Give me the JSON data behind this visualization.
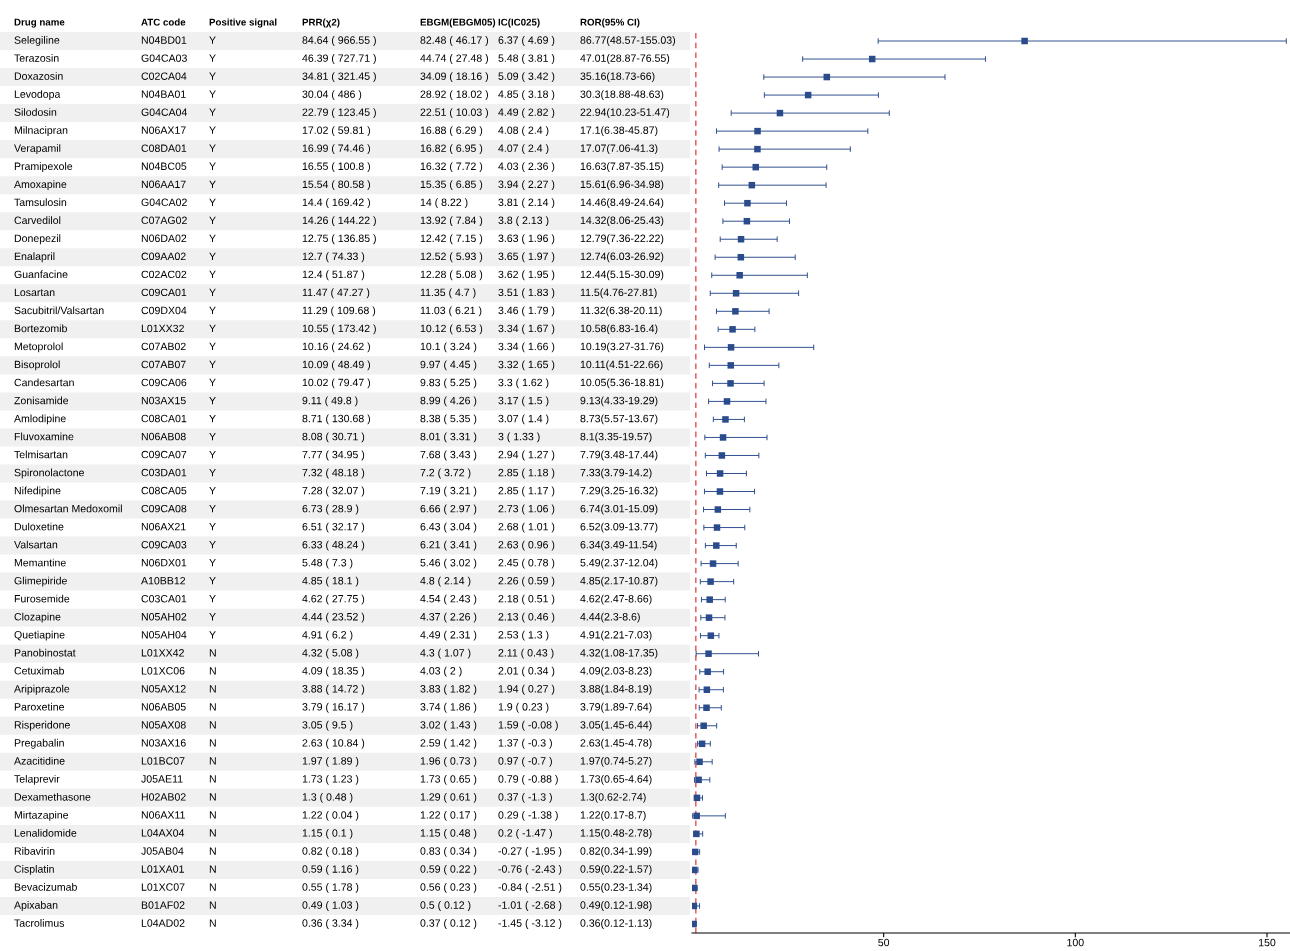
{
  "chart_data": [
    {
      "type": "other",
      "categories": [
        "Drug name",
        "ATC code",
        "Positive signal",
        "PRR(χ2)",
        "EBGM(EBGM05)",
        "IC(IC025)",
        "ROR(95% CI)"
      ],
      "cell_labels": [
        [
          "Selegiline",
          "N04BD01",
          "Y",
          "84.64 ( 966.55 )",
          "82.48 ( 46.17 )",
          "6.37 ( 4.69 )",
          "86.77(48.57-155.03)"
        ],
        [
          "Terazosin",
          "G04CA03",
          "Y",
          "46.39 ( 727.71 )",
          "44.74 ( 27.48 )",
          "5.48 ( 3.81 )",
          "47.01(28.87-76.55)"
        ],
        [
          "Doxazosin",
          "C02CA04",
          "Y",
          "34.81 ( 321.45 )",
          "34.09 ( 18.16 )",
          "5.09 ( 3.42 )",
          "35.16(18.73-66)"
        ],
        [
          "Levodopa",
          "N04BA01",
          "Y",
          "30.04 ( 486 )",
          "28.92 ( 18.02 )",
          "4.85 ( 3.18 )",
          "30.3(18.88-48.63)"
        ],
        [
          "Silodosin",
          "G04CA04",
          "Y",
          "22.79 ( 123.45 )",
          "22.51 ( 10.03 )",
          "4.49 ( 2.82 )",
          "22.94(10.23-51.47)"
        ],
        [
          "Milnacipran",
          "N06AX17",
          "Y",
          "17.02 ( 59.81 )",
          "16.88 ( 6.29 )",
          "4.08 ( 2.4 )",
          "17.1(6.38-45.87)"
        ],
        [
          "Verapamil",
          "C08DA01",
          "Y",
          "16.99 ( 74.46 )",
          "16.82 ( 6.95 )",
          "4.07 ( 2.4 )",
          "17.07(7.06-41.3)"
        ],
        [
          "Pramipexole",
          "N04BC05",
          "Y",
          "16.55 ( 100.8 )",
          "16.32 ( 7.72 )",
          "4.03 ( 2.36 )",
          "16.63(7.87-35.15)"
        ],
        [
          "Amoxapine",
          "N06AA17",
          "Y",
          "15.54 ( 80.58 )",
          "15.35 ( 6.85 )",
          "3.94 ( 2.27 )",
          "15.61(6.96-34.98)"
        ],
        [
          "Tamsulosin",
          "G04CA02",
          "Y",
          "14.4 ( 169.42 )",
          "14 ( 8.22 )",
          "3.81 ( 2.14 )",
          "14.46(8.49-24.64)"
        ],
        [
          "Carvedilol",
          "C07AG02",
          "Y",
          "14.26 ( 144.22 )",
          "13.92 ( 7.84 )",
          "3.8 ( 2.13 )",
          "14.32(8.06-25.43)"
        ],
        [
          "Donepezil",
          "N06DA02",
          "Y",
          "12.75 ( 136.85 )",
          "12.42 ( 7.15 )",
          "3.63 ( 1.96 )",
          "12.79(7.36-22.22)"
        ],
        [
          "Enalapril",
          "C09AA02",
          "Y",
          "12.7 ( 74.33 )",
          "12.52 ( 5.93 )",
          "3.65 ( 1.97 )",
          "12.74(6.03-26.92)"
        ],
        [
          "Guanfacine",
          "C02AC02",
          "Y",
          "12.4 ( 51.87 )",
          "12.28 ( 5.08 )",
          "3.62 ( 1.95 )",
          "12.44(5.15-30.09)"
        ],
        [
          "Losartan",
          "C09CA01",
          "Y",
          "11.47 ( 47.27 )",
          "11.35 ( 4.7 )",
          "3.51 ( 1.83 )",
          "11.5(4.76-27.81)"
        ],
        [
          "Sacubitril/Valsartan",
          "C09DX04",
          "Y",
          "11.29 ( 109.68 )",
          "11.03 ( 6.21 )",
          "3.46 ( 1.79 )",
          "11.32(6.38-20.11)"
        ],
        [
          "Bortezomib",
          "L01XX32",
          "Y",
          "10.55 ( 173.42 )",
          "10.12 ( 6.53 )",
          "3.34 ( 1.67 )",
          "10.58(6.83-16.4)"
        ],
        [
          "Metoprolol",
          "C07AB02",
          "Y",
          "10.16 ( 24.62 )",
          "10.1 ( 3.24 )",
          "3.34 ( 1.66 )",
          "10.19(3.27-31.76)"
        ],
        [
          "Bisoprolol",
          "C07AB07",
          "Y",
          "10.09 ( 48.49 )",
          "9.97 ( 4.45 )",
          "3.32 ( 1.65 )",
          "10.11(4.51-22.66)"
        ],
        [
          "Candesartan",
          "C09CA06",
          "Y",
          "10.02 ( 79.47 )",
          "9.83 ( 5.25 )",
          "3.3 ( 1.62 )",
          "10.05(5.36-18.81)"
        ],
        [
          "Zonisamide",
          "N03AX15",
          "Y",
          "9.11 ( 49.8 )",
          "8.99 ( 4.26 )",
          "3.17 ( 1.5 )",
          "9.13(4.33-19.29)"
        ],
        [
          "Amlodipine",
          "C08CA01",
          "Y",
          "8.71 ( 130.68 )",
          "8.38 ( 5.35 )",
          "3.07 ( 1.4 )",
          "8.73(5.57-13.67)"
        ],
        [
          "Fluvoxamine",
          "N06AB08",
          "Y",
          "8.08 ( 30.71 )",
          "8.01 ( 3.31 )",
          "3 ( 1.33 )",
          "8.1(3.35-19.57)"
        ],
        [
          "Telmisartan",
          "C09CA07",
          "Y",
          "7.77 ( 34.95 )",
          "7.68 ( 3.43 )",
          "2.94 ( 1.27 )",
          "7.79(3.48-17.44)"
        ],
        [
          "Spironolactone",
          "C03DA01",
          "Y",
          "7.32 ( 48.18 )",
          "7.2 ( 3.72 )",
          "2.85 ( 1.18 )",
          "7.33(3.79-14.2)"
        ],
        [
          "Nifedipine",
          "C08CA05",
          "Y",
          "7.28 ( 32.07 )",
          "7.19 ( 3.21 )",
          "2.85 ( 1.17 )",
          "7.29(3.25-16.32)"
        ],
        [
          "Olmesartan Medoxomil",
          "C09CA08",
          "Y",
          "6.73 ( 28.9 )",
          "6.66 ( 2.97 )",
          "2.73 ( 1.06 )",
          "6.74(3.01-15.09)"
        ],
        [
          "Duloxetine",
          "N06AX21",
          "Y",
          "6.51 ( 32.17 )",
          "6.43 ( 3.04 )",
          "2.68 ( 1.01 )",
          "6.52(3.09-13.77)"
        ],
        [
          "Valsartan",
          "C09CA03",
          "Y",
          "6.33 ( 48.24 )",
          "6.21 ( 3.41 )",
          "2.63 ( 0.96 )",
          "6.34(3.49-11.54)"
        ],
        [
          "Memantine",
          "N06DX01",
          "Y",
          "5.48 ( 7.3 )",
          "5.46 ( 3.02 )",
          "2.45 ( 0.78 )",
          "5.49(2.37-12.04)"
        ],
        [
          "Glimepiride",
          "A10BB12",
          "Y",
          "4.85 ( 18.1 )",
          "4.8 ( 2.14 )",
          "2.26 ( 0.59 )",
          "4.85(2.17-10.87)"
        ],
        [
          "Furosemide",
          "C03CA01",
          "Y",
          "4.62 ( 27.75 )",
          "4.54 ( 2.43 )",
          "2.18 ( 0.51 )",
          "4.62(2.47-8.66)"
        ],
        [
          "Clozapine",
          "N05AH02",
          "Y",
          "4.44 ( 23.52 )",
          "4.37 ( 2.26 )",
          "2.13 ( 0.46 )",
          "4.44(2.3-8.6)"
        ],
        [
          "Quetiapine",
          "N05AH04",
          "Y",
          "4.91 ( 6.2 )",
          "4.49 ( 2.31 )",
          "2.53 ( 1.3 )",
          "4.91(2.21-7.03)"
        ],
        [
          "Panobinostat",
          "L01XX42",
          "N",
          "4.32 ( 5.08 )",
          "4.3 ( 1.07 )",
          "2.11 ( 0.43 )",
          "4.32(1.08-17.35)"
        ],
        [
          "Cetuximab",
          "L01XC06",
          "N",
          "4.09 ( 18.35 )",
          "4.03 ( 2 )",
          "2.01 ( 0.34 )",
          "4.09(2.03-8.23)"
        ],
        [
          "Aripiprazole",
          "N05AX12",
          "N",
          "3.88 ( 14.72 )",
          "3.83 ( 1.82 )",
          "1.94 ( 0.27 )",
          "3.88(1.84-8.19)"
        ],
        [
          "Paroxetine",
          "N06AB05",
          "N",
          "3.79 ( 16.17 )",
          "3.74 ( 1.86 )",
          "1.9 ( 0.23 )",
          "3.79(1.89-7.64)"
        ],
        [
          "Risperidone",
          "N05AX08",
          "N",
          "3.05 ( 9.5 )",
          "3.02 ( 1.43 )",
          "1.59 ( -0.08 )",
          "3.05(1.45-6.44)"
        ],
        [
          "Pregabalin",
          "N03AX16",
          "N",
          "2.63 ( 10.84 )",
          "2.59 ( 1.42 )",
          "1.37 ( -0.3 )",
          "2.63(1.45-4.78)"
        ],
        [
          "Azacitidine",
          "L01BC07",
          "N",
          "1.97 ( 1.89 )",
          "1.96 ( 0.73 )",
          "0.97 ( -0.7 )",
          "1.97(0.74-5.27)"
        ],
        [
          "Telaprevir",
          "J05AE11",
          "N",
          "1.73 ( 1.23 )",
          "1.73 ( 0.65 )",
          "0.79 ( -0.88 )",
          "1.73(0.65-4.64)"
        ],
        [
          "Dexamethasone",
          "H02AB02",
          "N",
          "1.3 ( 0.48 )",
          "1.29 ( 0.61 )",
          "0.37 ( -1.3 )",
          "1.3(0.62-2.74)"
        ],
        [
          "Mirtazapine",
          "N06AX11",
          "N",
          "1.22 ( 0.04 )",
          "1.22 ( 0.17 )",
          "0.29 ( -1.38 )",
          "1.22(0.17-8.7)"
        ],
        [
          "Lenalidomide",
          "L04AX04",
          "N",
          "1.15 ( 0.1 )",
          "1.15 ( 0.48 )",
          "0.2 ( -1.47 )",
          "1.15(0.48-2.78)"
        ],
        [
          "Ribavirin",
          "J05AB04",
          "N",
          "0.82 ( 0.18 )",
          "0.83 ( 0.34 )",
          "-0.27 ( -1.95 )",
          "0.82(0.34-1.99)"
        ],
        [
          "Cisplatin",
          "L01XA01",
          "N",
          "0.59 ( 1.16 )",
          "0.59 ( 0.22 )",
          "-0.76 ( -2.43 )",
          "0.59(0.22-1.57)"
        ],
        [
          "Bevacizumab",
          "L01XC07",
          "N",
          "0.55 ( 1.78 )",
          "0.56 ( 0.23 )",
          "-0.84 ( -2.51 )",
          "0.55(0.23-1.34)"
        ],
        [
          "Apixaban",
          "B01AF02",
          "N",
          "0.49 ( 1.03 )",
          "0.5 ( 0.12 )",
          "-1.01 ( -2.68 )",
          "0.49(0.12-1.98)"
        ],
        [
          "Tacrolimus",
          "L04AD02",
          "N",
          "0.36 ( 3.34 )",
          "0.37 ( 0.12 )",
          "-1.45 ( -3.12 )",
          "0.36(0.12-1.13)"
        ]
      ]
    },
    {
      "type": "scatter",
      "orientation": "horizontal",
      "tick_labels": "x",
      "marker": "square",
      "color": "#2b4c8c",
      "categories": [
        null,
        null,
        null,
        null,
        null,
        null,
        null,
        null,
        null,
        null,
        null,
        null,
        null,
        null,
        null,
        null,
        null,
        null,
        null,
        null,
        null,
        null,
        null,
        null,
        null,
        null,
        null,
        null,
        null,
        null,
        null,
        null,
        null,
        null,
        null,
        null,
        null,
        null,
        null,
        null,
        null,
        null,
        null,
        null,
        null,
        null,
        null,
        null,
        null,
        null
      ],
      "values": [
        86.77,
        47.01,
        35.16,
        30.3,
        22.94,
        17.1,
        17.07,
        16.63,
        15.61,
        14.46,
        14.32,
        12.79,
        12.74,
        12.44,
        11.5,
        11.32,
        10.58,
        10.19,
        10.11,
        10.05,
        9.13,
        8.73,
        8.1,
        7.79,
        7.33,
        7.29,
        6.74,
        6.52,
        6.34,
        5.49,
        4.85,
        4.62,
        4.44,
        4.91,
        4.32,
        4.09,
        3.88,
        3.79,
        3.05,
        2.63,
        1.97,
        1.73,
        1.3,
        1.22,
        1.15,
        0.82,
        0.59,
        0.55,
        0.49,
        0.36
      ],
      "errors": [
        [
          48.57,
          155.03
        ],
        [
          28.87,
          76.55
        ],
        [
          18.73,
          66
        ],
        [
          18.88,
          48.63
        ],
        [
          10.23,
          51.47
        ],
        [
          6.38,
          45.87
        ],
        [
          7.06,
          41.3
        ],
        [
          7.87,
          35.15
        ],
        [
          6.96,
          34.98
        ],
        [
          8.49,
          24.64
        ],
        [
          8.06,
          25.43
        ],
        [
          7.36,
          22.22
        ],
        [
          6.03,
          26.92
        ],
        [
          5.15,
          30.09
        ],
        [
          4.76,
          27.81
        ],
        [
          6.38,
          20.11
        ],
        [
          6.83,
          16.4
        ],
        [
          3.27,
          31.76
        ],
        [
          4.51,
          22.66
        ],
        [
          5.36,
          18.81
        ],
        [
          4.33,
          19.29
        ],
        [
          5.57,
          13.67
        ],
        [
          3.35,
          19.57
        ],
        [
          3.48,
          17.44
        ],
        [
          3.79,
          14.2
        ],
        [
          3.25,
          16.32
        ],
        [
          3.01,
          15.09
        ],
        [
          3.09,
          13.77
        ],
        [
          3.49,
          11.54
        ],
        [
          2.37,
          12.04
        ],
        [
          2.17,
          10.87
        ],
        [
          2.47,
          8.66
        ],
        [
          2.3,
          8.6
        ],
        [
          2.21,
          7.03
        ],
        [
          1.08,
          17.35
        ],
        [
          2.03,
          8.23
        ],
        [
          1.84,
          8.19
        ],
        [
          1.89,
          7.64
        ],
        [
          1.45,
          6.44
        ],
        [
          1.45,
          4.78
        ],
        [
          0.74,
          5.27
        ],
        [
          0.65,
          4.64
        ],
        [
          0.62,
          2.74
        ],
        [
          0.17,
          8.7
        ],
        [
          0.48,
          2.78
        ],
        [
          0.34,
          1.99
        ],
        [
          0.22,
          1.57
        ],
        [
          0.23,
          1.34
        ],
        [
          0.12,
          1.98
        ],
        [
          0.12,
          1.13
        ]
      ],
      "xlim": [
        0,
        156
      ],
      "xticks": [
        50,
        100,
        150
      ],
      "ref_lines": [
        {
          "axis": "x",
          "value": 1,
          "color": "#e05050",
          "line_style": "dashed"
        }
      ]
    }
  ]
}
